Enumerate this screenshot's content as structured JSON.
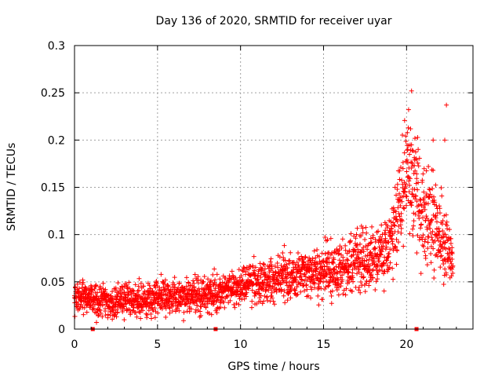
{
  "chart_data": {
    "type": "scatter",
    "title": "Day 136 of 2020, SRMTID for receiver uyar",
    "xlabel": "GPS time / hours",
    "ylabel": "SRMTID / TECUs",
    "xlim": [
      0,
      24
    ],
    "ylim": [
      0,
      0.3
    ],
    "xticks": [
      0,
      5,
      10,
      15,
      20
    ],
    "yticks": [
      0,
      0.05,
      0.1,
      0.15,
      0.2,
      0.25,
      0.3
    ],
    "xtick_labels": [
      "0",
      "5",
      "10",
      "15",
      "20"
    ],
    "ytick_labels": [
      "0",
      "0.05",
      "0.1",
      "0.15",
      "0.2",
      "0.25",
      "0.3"
    ],
    "grid": true,
    "marker": "+",
    "color": "#ff0000",
    "t_start": 0,
    "t_end": 22.8,
    "sample_interval_hours": 0.01,
    "trend": [
      {
        "x": 0,
        "y": 0.035
      },
      {
        "x": 2,
        "y": 0.028
      },
      {
        "x": 4,
        "y": 0.032
      },
      {
        "x": 6,
        "y": 0.035
      },
      {
        "x": 8,
        "y": 0.036
      },
      {
        "x": 10,
        "y": 0.045
      },
      {
        "x": 12,
        "y": 0.052
      },
      {
        "x": 14,
        "y": 0.058
      },
      {
        "x": 16,
        "y": 0.065
      },
      {
        "x": 17,
        "y": 0.072
      },
      {
        "x": 18,
        "y": 0.075
      },
      {
        "x": 19,
        "y": 0.09
      },
      {
        "x": 19.8,
        "y": 0.15
      },
      {
        "x": 20.5,
        "y": 0.16
      },
      {
        "x": 21,
        "y": 0.12
      },
      {
        "x": 22,
        "y": 0.1
      },
      {
        "x": 22.8,
        "y": 0.07
      }
    ],
    "spread": [
      {
        "x": 0,
        "y": 0.012
      },
      {
        "x": 10,
        "y": 0.014
      },
      {
        "x": 15,
        "y": 0.02
      },
      {
        "x": 19,
        "y": 0.025
      },
      {
        "x": 20,
        "y": 0.045
      },
      {
        "x": 22,
        "y": 0.035
      },
      {
        "x": 22.8,
        "y": 0.025
      }
    ],
    "highlight_points": [
      {
        "x": 20.3,
        "y": 0.252
      },
      {
        "x": 22.4,
        "y": 0.237
      },
      {
        "x": 20.1,
        "y": 0.213
      },
      {
        "x": 22.3,
        "y": 0.2
      },
      {
        "x": 20.3,
        "y": 0.195
      },
      {
        "x": 21.6,
        "y": 0.2
      }
    ],
    "bottom_markers": [
      {
        "x": 1.1,
        "y": 0
      },
      {
        "x": 8.5,
        "y": 0
      },
      {
        "x": 20.6,
        "y": 0
      }
    ]
  }
}
